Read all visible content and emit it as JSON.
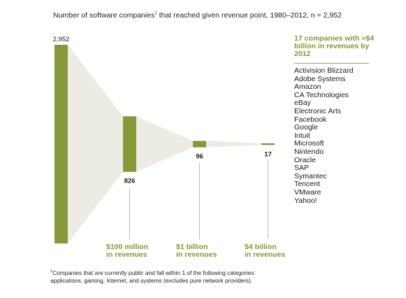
{
  "title": {
    "text_before": "Number of software companies",
    "footnote_marker": "1",
    "text_after": " that reached given revenue point, 1980–2012, n = 2,952"
  },
  "chart_data": {
    "type": "bar",
    "categories": [
      "",
      "$100 million in revenues",
      "$1 billion in revenues",
      "$4 billion in revenues"
    ],
    "category_lines": [
      [],
      [
        "$100 million",
        "in revenues"
      ],
      [
        "$1 billion",
        "in revenues"
      ],
      [
        "$4 billion",
        "in revenues"
      ]
    ],
    "values": [
      2952,
      826,
      96,
      17
    ],
    "value_labels": [
      "2,952",
      "826",
      "96",
      "17"
    ],
    "ylim": [
      0,
      2952
    ],
    "grid": false,
    "legend": "none",
    "funnel": true
  },
  "sidebar": {
    "heading": "17 companies with >$4 billion in revenues by 2012",
    "companies": [
      "Activision Blizzard",
      "Adobe Systems",
      "Amazon",
      "CA Technologies",
      "eBay",
      "Electronic Arts",
      "Facebook",
      "Google",
      "Intuit",
      "Microsoft",
      "Nintendo",
      "Oracle",
      "SAP",
      "Symantec",
      "Tencent",
      "VMware",
      "Yahoo!"
    ]
  },
  "footnote": {
    "marker": "1",
    "lines": [
      "Companies that are currently public and fall within 1 of the following categories:",
      "applications, gaming, Internet, and systems (excludes pure network providers)."
    ]
  },
  "colors": {
    "bar": "#85993a",
    "funnel": "#ecece4",
    "accent_text": "#7f9a36",
    "connector": "#b8b8b8"
  }
}
